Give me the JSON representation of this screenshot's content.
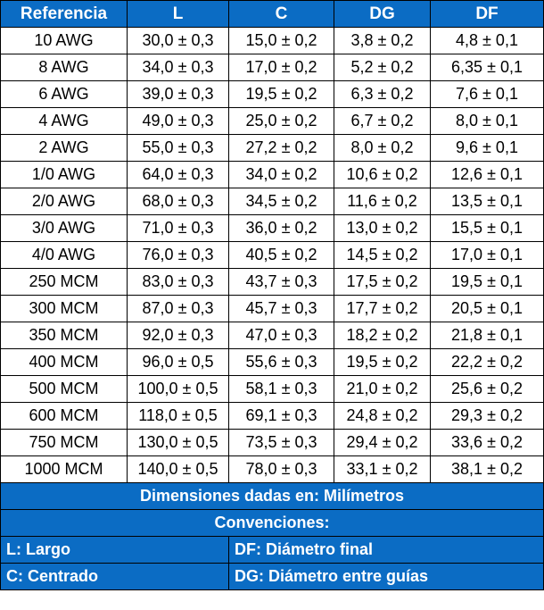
{
  "table": {
    "headers": [
      "Referencia",
      "L",
      "C",
      "DG",
      "DF"
    ],
    "rows": [
      [
        "10  AWG",
        "30,0 ± 0,3",
        "15,0 ± 0,2",
        "3,8 ± 0,2",
        "4,8 ± 0,1"
      ],
      [
        "8 AWG",
        "34,0 ± 0,3",
        "17,0 ± 0,2",
        "5,2 ± 0,2",
        "6,35 ± 0,1"
      ],
      [
        "6 AWG",
        "39,0 ± 0,3",
        "19,5 ± 0,2",
        "6,3 ± 0,2",
        "7,6 ± 0,1"
      ],
      [
        "4 AWG",
        "49,0 ± 0,3",
        "25,0 ± 0,2",
        "6,7 ± 0,2",
        "8,0 ± 0,1"
      ],
      [
        "2 AWG",
        "55,0 ± 0,3",
        "27,2 ± 0,2",
        "8,0 ± 0,2",
        "9,6 ± 0,1"
      ],
      [
        "1/0 AWG",
        "64,0 ± 0,3",
        "34,0 ± 0,2",
        "10,6 ± 0,2",
        "12,6 ± 0,1"
      ],
      [
        "2/0 AWG",
        "68,0 ± 0,3",
        "34,5 ± 0,2",
        "11,6 ± 0,2",
        "13,5 ± 0,1"
      ],
      [
        "3/0 AWG",
        "71,0 ± 0,3",
        "36,0 ± 0,2",
        "13,0 ± 0,2",
        "15,5 ± 0,1"
      ],
      [
        "4/0 AWG",
        "76,0 ± 0,3",
        "40,5 ± 0,2",
        "14,5 ± 0,2",
        "17,0 ± 0,1"
      ],
      [
        "250 MCM",
        "83,0 ± 0,3",
        "43,7 ± 0,3",
        "17,5 ± 0,2",
        "19,5 ± 0,1"
      ],
      [
        "300 MCM",
        "87,0 ± 0,3",
        "45,7 ± 0,3",
        "17,7 ± 0,2",
        "20,5 ± 0,1"
      ],
      [
        "350 MCM",
        "92,0 ± 0,3",
        "47,0 ± 0,3",
        "18,2 ± 0,2",
        "21,8 ± 0,1"
      ],
      [
        "400 MCM",
        "96,0 ± 0,5",
        "55,6 ± 0,3",
        "19,5 ± 0,2",
        "22,2 ± 0,2"
      ],
      [
        "500 MCM",
        "100,0 ± 0,5",
        "58,1 ± 0,3",
        "21,0 ± 0,2",
        "25,6 ± 0,2"
      ],
      [
        "600 MCM",
        "118,0 ± 0,5",
        "69,1 ± 0,3",
        "24,8 ± 0,2",
        "29,3 ± 0,2"
      ],
      [
        "750 MCM",
        "130,0 ± 0,5",
        "73,5 ± 0,3",
        "29,4 ± 0,2",
        "33,6 ± 0,2"
      ],
      [
        "1000 MCM",
        "140,0 ± 0,5",
        "78,0 ± 0,3",
        "33,1 ± 0,2",
        "38,1 ± 0,2"
      ]
    ]
  },
  "notes": {
    "units": "Dimensiones dadas en: Milímetros",
    "conventions_title": "Convenciones:",
    "legend": {
      "L": "L: Largo",
      "DF": "DF: Diámetro final",
      "C": "C: Centrado",
      "DG": "DG: Diámetro entre guías"
    }
  },
  "colors": {
    "header_blue": "#0b6cc4",
    "header_text": "#ffffff",
    "border": "#000000"
  }
}
